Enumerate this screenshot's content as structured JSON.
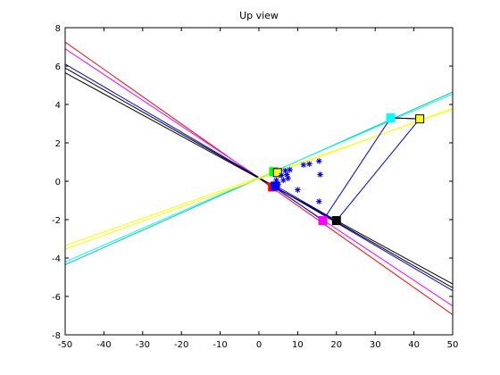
{
  "chart_data": {
    "type": "line",
    "title": "Up view",
    "xlabel": "",
    "ylabel": "",
    "xlim": [
      -50,
      50
    ],
    "ylim": [
      -8,
      8
    ],
    "xticks": [
      -50,
      -40,
      -30,
      -20,
      -10,
      0,
      10,
      20,
      30,
      40,
      50
    ],
    "yticks": [
      -8,
      -6,
      -4,
      -2,
      0,
      2,
      4,
      6,
      8
    ],
    "xtick_labels": [
      "-50",
      "-40",
      "-30",
      "-20",
      "-10",
      "0",
      "10",
      "20",
      "30",
      "40",
      "50"
    ],
    "ytick_labels": [
      "-8",
      "-6",
      "-4",
      "-2",
      "0",
      "2",
      "4",
      "6",
      "8"
    ],
    "grid": false,
    "legend": "none",
    "lines": [
      {
        "color": "#ff0000",
        "x": [
          -50,
          50
        ],
        "y": [
          7.25,
          -6.95
        ]
      },
      {
        "color": "#ff00ff",
        "x": [
          -50,
          50
        ],
        "y": [
          6.9,
          -6.5
        ]
      },
      {
        "color": "#0000ff",
        "x": [
          -50,
          50
        ],
        "y": [
          6.1,
          -5.7
        ]
      },
      {
        "color": "#000000",
        "x": [
          -50,
          50
        ],
        "y": [
          5.9,
          -5.55
        ]
      },
      {
        "color": "#000000",
        "x": [
          -50,
          50
        ],
        "y": [
          5.65,
          -5.35
        ]
      },
      {
        "color": "#00cc99",
        "x": [
          -50,
          50
        ],
        "y": [
          -4.35,
          4.65
        ]
      },
      {
        "color": "#00ffff",
        "x": [
          -50,
          50
        ],
        "y": [
          -4.2,
          4.55
        ]
      },
      {
        "color": "#ffff00",
        "x": [
          -50,
          50
        ],
        "y": [
          -3.55,
          3.8
        ]
      },
      {
        "color": "#ffff00",
        "x": [
          -50,
          50
        ],
        "y": [
          -3.35,
          3.75
        ]
      }
    ],
    "polygon": {
      "color": "#0000ff",
      "x": [
        4.0,
        16.5,
        34.0,
        41.5,
        20.0,
        4.5
      ],
      "y": [
        -0.3,
        -2.05,
        3.3,
        3.25,
        -2.05,
        -0.25
      ]
    },
    "polygon_top_edge": {
      "color": "#000000",
      "x": [
        34.0,
        41.5
      ],
      "y": [
        3.3,
        3.25
      ]
    },
    "squares": [
      {
        "color": "#00ffff",
        "x": 34.0,
        "y": 3.3
      },
      {
        "color": "#ffff00",
        "x": 41.5,
        "y": 3.25
      },
      {
        "color": "#ff00ff",
        "x": 16.5,
        "y": -2.05
      },
      {
        "color": "#000000",
        "x": 20.0,
        "y": -2.05
      },
      {
        "color": "#ff0000",
        "x": 3.5,
        "y": -0.3
      },
      {
        "color": "#0000ff",
        "x": 4.2,
        "y": -0.25
      },
      {
        "color": "#00ff00",
        "x": 3.8,
        "y": 0.5
      },
      {
        "color": "#ffff00",
        "x": 4.8,
        "y": 0.45
      }
    ],
    "scatter": {
      "color": "#0000ff",
      "marker": "*",
      "x": [
        4.5,
        5.0,
        5.8,
        6.3,
        6.8,
        7.2,
        7.5,
        8.0,
        10.0,
        11.5,
        13.0,
        15.5,
        15.8,
        15.5
      ],
      "y": [
        0.05,
        -0.15,
        0.3,
        0.05,
        0.55,
        0.35,
        0.15,
        0.6,
        -0.45,
        0.85,
        0.9,
        1.05,
        0.35,
        -1.05
      ]
    }
  }
}
